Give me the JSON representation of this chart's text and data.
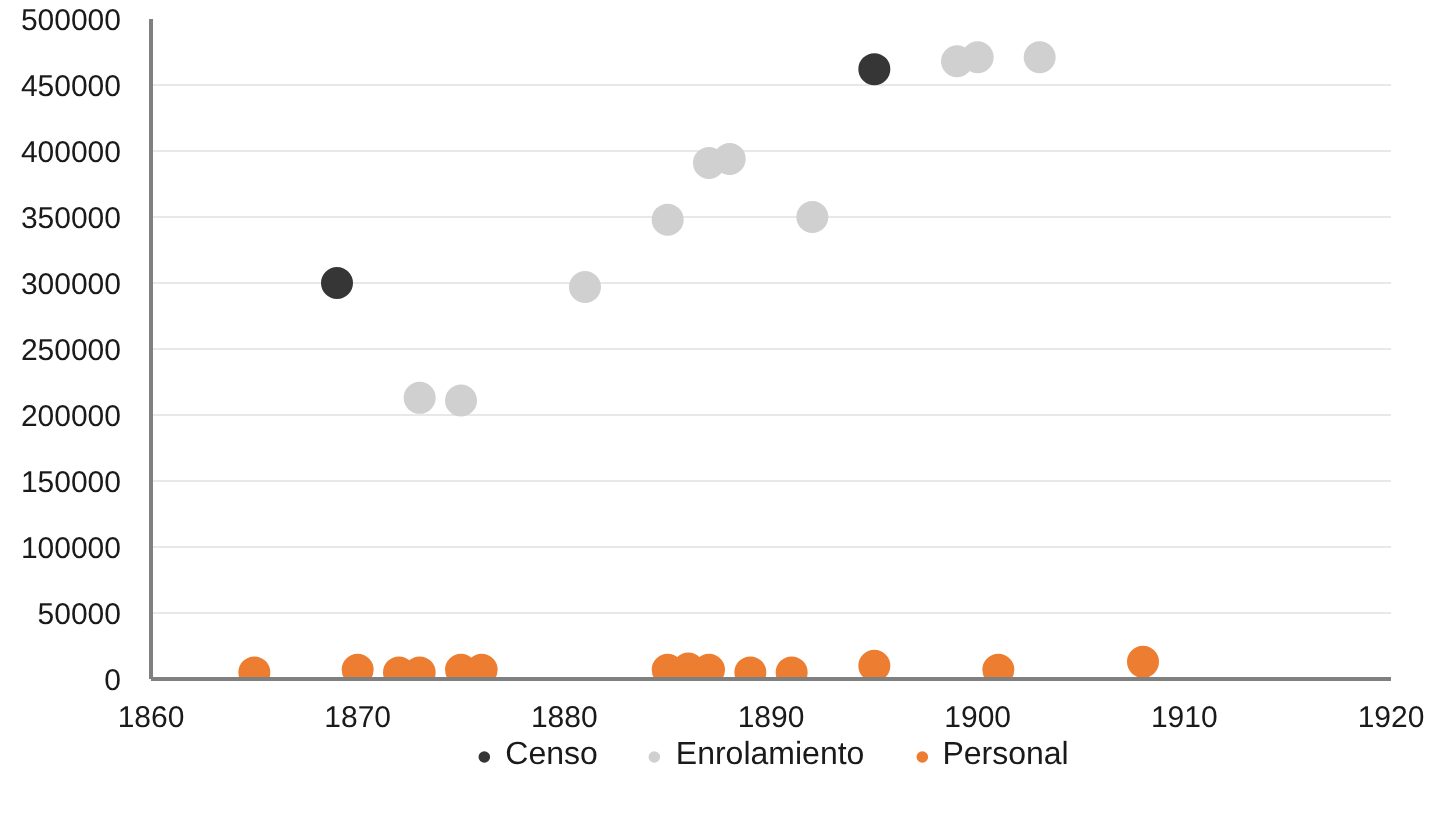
{
  "chart_data": {
    "type": "scatter",
    "xlim": [
      1860,
      1920
    ],
    "xticks": [
      1860,
      1870,
      1880,
      1890,
      1900,
      1910,
      1920
    ],
    "ylim": [
      0,
      500000
    ],
    "yticks": [
      0,
      50000,
      100000,
      150000,
      200000,
      250000,
      300000,
      350000,
      400000,
      450000,
      500000
    ],
    "grid": "y",
    "legend": "bottom",
    "marker": "circle",
    "series": [
      {
        "name": "Censo",
        "color": "#363636",
        "x": [
          1869,
          1895
        ],
        "values": [
          300000,
          462000
        ]
      },
      {
        "name": "Enrolamiento",
        "color": "#d0d0d0",
        "x": [
          1873,
          1875,
          1881,
          1885,
          1887,
          1888,
          1892,
          1899,
          1900,
          1903
        ],
        "values": [
          213000,
          211000,
          297000,
          348000,
          391000,
          394000,
          350000,
          468000,
          471000,
          471000
        ]
      },
      {
        "name": "Personal",
        "color": "#ed7d31",
        "x": [
          1865,
          1870,
          1872,
          1873,
          1875,
          1876,
          1885,
          1886,
          1887,
          1889,
          1891,
          1895,
          1901,
          1908
        ],
        "values": [
          5000,
          7000,
          5000,
          5000,
          7000,
          7000,
          7000,
          8000,
          7000,
          5000,
          5000,
          10000,
          7000,
          13000
        ]
      }
    ]
  }
}
